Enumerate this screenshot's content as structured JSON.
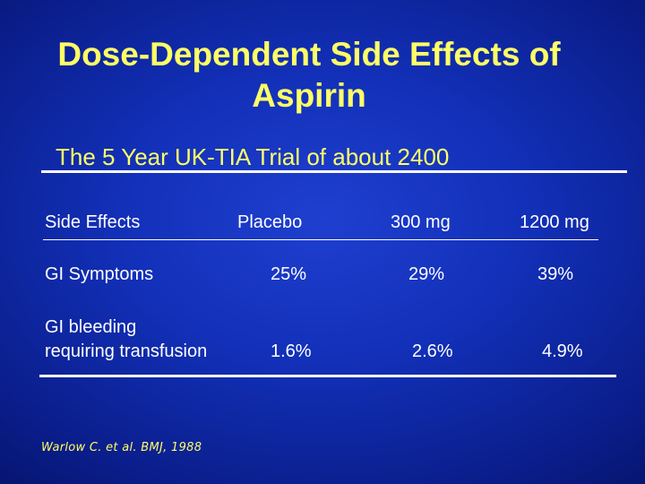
{
  "slide": {
    "title_line1": "Dose-Dependent Side Effects of",
    "title_line2": "Aspirin",
    "subtitle": "The 5 Year UK-TIA Trial of about 2400",
    "citation": "Warlow C. et al. BMJ, 1988"
  },
  "table": {
    "headers": [
      "Side Effects",
      "Placebo",
      "300 mg",
      "1200 mg"
    ],
    "rows": [
      {
        "label": "GI Symptoms",
        "values": [
          "25%",
          "29%",
          "39%"
        ]
      },
      {
        "label_line1": "GI bleeding",
        "label_line2": "requiring transfusion",
        "values": [
          "1.6%",
          "2.6%",
          "4.9%"
        ]
      }
    ]
  },
  "colors": {
    "title": "#ffff66",
    "text": "#ffffff",
    "background": "#1230b8"
  }
}
